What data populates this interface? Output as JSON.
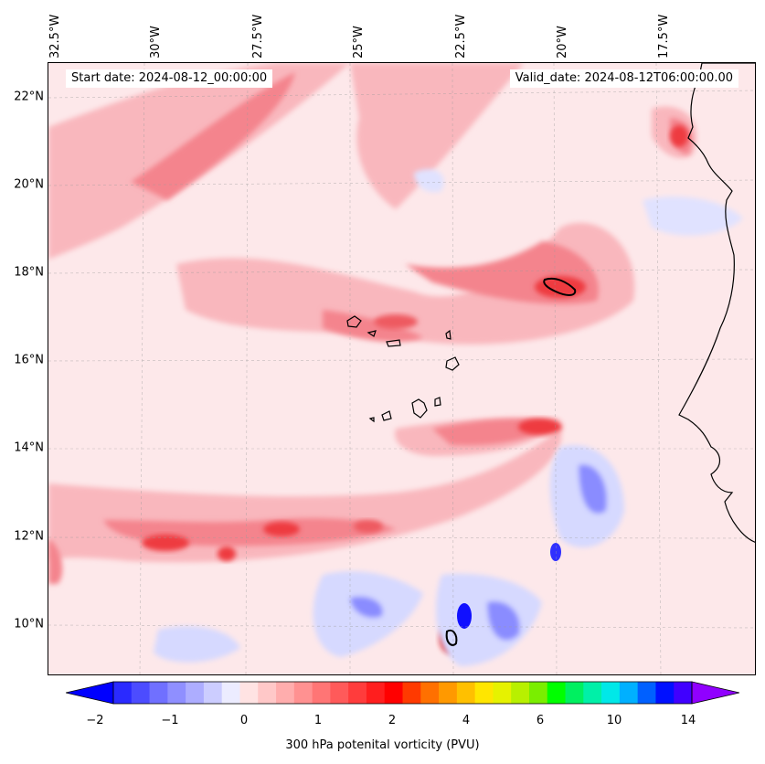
{
  "map": {
    "start_date": "Start date: 2024-08-12_00:00:00",
    "valid_date": "Valid_date: 2024-08-12T06:00:00.00",
    "lon_labels": [
      "32.5°W",
      "30°W",
      "27.5°W",
      "25°W",
      "22.5°W",
      "20°W",
      "17.5°W"
    ],
    "lat_labels": [
      "22°N",
      "20°N",
      "18°N",
      "16°N",
      "14°N",
      "12°N",
      "10°N"
    ],
    "field": "300 hPa potential vorticity",
    "colors": {
      "background": "#fde8ea",
      "light_red": "#f9b7bd",
      "mid_red": "#f4848d",
      "strong_red": "#ee3b40",
      "deep_red": "#e41a1c",
      "light_blue": "#d6d9ff",
      "mid_blue": "#8a8cff",
      "deep_blue": "#1010ff",
      "coast": "#000000"
    }
  },
  "colorbar": {
    "label": "300 hPa potenital vorticity (PVU)",
    "ticks": [
      "−2",
      "−1",
      "0",
      "1",
      "2",
      "4",
      "6",
      "10",
      "14"
    ],
    "colors": [
      "#0000ff",
      "#2a2aff",
      "#4c4cff",
      "#7070ff",
      "#8f8fff",
      "#adadff",
      "#cccdff",
      "#ececff",
      "#ffe3e3",
      "#ffc8c8",
      "#ffadad",
      "#ff9191",
      "#ff7575",
      "#ff5a5a",
      "#ff3c3c",
      "#ff1e1e",
      "#ff0000",
      "#ff3a00",
      "#ff7000",
      "#ff9900",
      "#ffc000",
      "#ffe600",
      "#e6f200",
      "#b8f000",
      "#7aee00",
      "#00ff00",
      "#00f060",
      "#00f0a8",
      "#00e8e8",
      "#00b0ff",
      "#0060ff",
      "#0010ff",
      "#4000ff",
      "#9000ff"
    ]
  }
}
